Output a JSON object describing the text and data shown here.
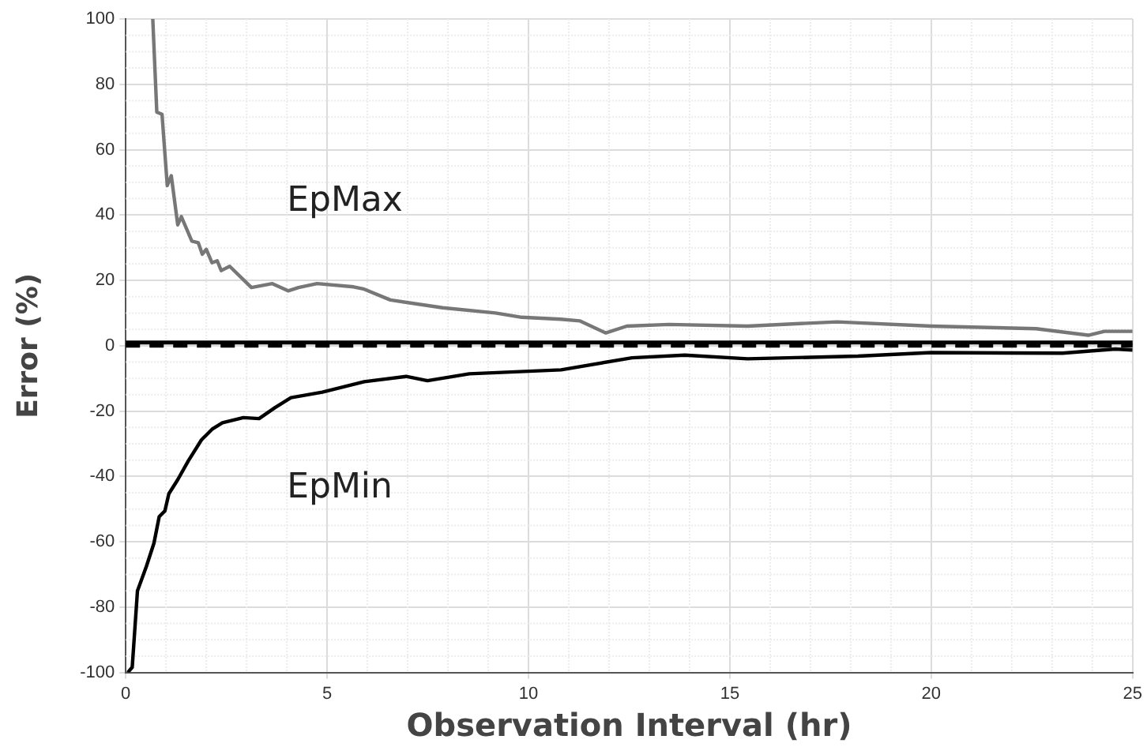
{
  "chart_data": {
    "type": "line",
    "xlabel": "Observation Interval (hr)",
    "ylabel": "Error (%)",
    "xlim": [
      0,
      25
    ],
    "xticks": [
      0,
      5,
      10,
      15,
      20,
      25
    ],
    "ylim": [
      -100,
      100
    ],
    "yticks": [
      -100,
      -80,
      -60,
      -40,
      -20,
      0,
      20,
      40,
      60,
      80,
      100
    ],
    "grid": true,
    "legend": false,
    "marker": "none",
    "line_style": "solid",
    "series": [
      {
        "name": "EpMax",
        "color": "#777777",
        "x": [
          0.67,
          0.77,
          0.9,
          1.03,
          1.13,
          1.29,
          1.38,
          1.64,
          1.8,
          1.9,
          2.0,
          2.14,
          2.27,
          2.37,
          2.58,
          3.12,
          3.64,
          4.03,
          4.29,
          4.75,
          5.66,
          5.92,
          6.57,
          7.87,
          9.18,
          9.83,
          10.8,
          11.27,
          11.92,
          12.44,
          13.49,
          15.44,
          17.66,
          20.0,
          22.6,
          23.9,
          24.3,
          25
        ],
        "values": [
          100,
          71.5,
          70.8,
          49,
          52,
          37,
          39.5,
          32,
          31.5,
          28,
          29.5,
          25.4,
          26,
          23,
          24.3,
          17.8,
          19,
          16.8,
          17.8,
          19,
          18,
          17.3,
          14,
          11.6,
          10,
          8.7,
          8.1,
          7.6,
          3.9,
          6,
          6.5,
          6,
          7.3,
          6,
          5.2,
          3.2,
          4.4,
          4.4
        ]
      },
      {
        "name": "EpMin",
        "color": "#000000",
        "x": [
          0.05,
          0.16,
          0.29,
          0.51,
          0.7,
          0.83,
          0.97,
          1.07,
          1.29,
          1.55,
          1.88,
          2.14,
          2.4,
          2.92,
          3.31,
          3.7,
          4.1,
          4.88,
          5.92,
          6.96,
          7.49,
          8.53,
          10.81,
          12.57,
          13.88,
          15.44,
          18.18,
          20.0,
          23.26,
          24.57,
          25
        ],
        "values": [
          -100,
          -98.4,
          -75,
          -67.6,
          -60.4,
          -52.3,
          -50.6,
          -45.3,
          -41,
          -35.3,
          -28.8,
          -25.6,
          -23.6,
          -22,
          -22.3,
          -19,
          -15.9,
          -14.2,
          -11,
          -9.4,
          -10.7,
          -8.6,
          -7.4,
          -3.7,
          -2.9,
          -4,
          -3.2,
          -2.1,
          -2.3,
          -1,
          -1.3
        ]
      }
    ],
    "ref_lines": [
      {
        "axis": "y",
        "value": 1,
        "color": "#000000",
        "line_style": "solid"
      },
      {
        "axis": "y",
        "value": 0,
        "color": "#000000",
        "line_style": "dashed"
      }
    ]
  }
}
